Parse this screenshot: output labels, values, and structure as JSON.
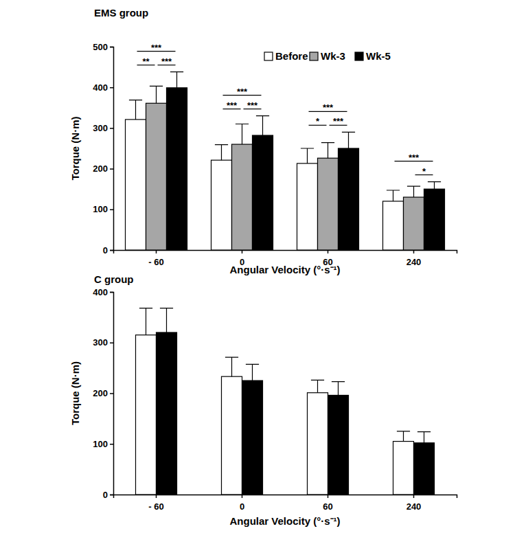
{
  "chart_data": [
    {
      "type": "bar",
      "title": "EMS group",
      "x_label": "Angular Velocity (°·s⁻¹)",
      "y_label": "Torque (N·m)",
      "categories": [
        "- 60",
        "0",
        "60",
        "240"
      ],
      "series": [
        {
          "name": "Before",
          "color": "#ffffff",
          "values": [
            321,
            221,
            213,
            120
          ],
          "errors": [
            48,
            38,
            37,
            27
          ]
        },
        {
          "name": "Wk-3",
          "color": "#a6a6a6",
          "values": [
            361,
            260,
            226,
            130
          ],
          "errors": [
            42,
            50,
            38,
            27
          ]
        },
        {
          "name": "Wk-5",
          "color": "#000000",
          "values": [
            399,
            282,
            250,
            150
          ],
          "errors": [
            39,
            48,
            40,
            18
          ]
        }
      ],
      "ylim": [
        0,
        500
      ],
      "yticks": [
        0,
        100,
        200,
        300,
        400,
        500
      ],
      "legend": "top-right",
      "annotations": [
        {
          "category": "- 60",
          "from": "Before",
          "to": "Wk-3",
          "label": "**"
        },
        {
          "category": "- 60",
          "from": "Wk-3",
          "to": "Wk-5",
          "label": "***"
        },
        {
          "category": "- 60",
          "from": "Before",
          "to": "Wk-5",
          "label": "***"
        },
        {
          "category": "0",
          "from": "Before",
          "to": "Wk-3",
          "label": "***"
        },
        {
          "category": "0",
          "from": "Wk-3",
          "to": "Wk-5",
          "label": "***"
        },
        {
          "category": "0",
          "from": "Before",
          "to": "Wk-5",
          "label": "***"
        },
        {
          "category": "60",
          "from": "Before",
          "to": "Wk-3",
          "label": "*"
        },
        {
          "category": "60",
          "from": "Wk-3",
          "to": "Wk-5",
          "label": "***"
        },
        {
          "category": "60",
          "from": "Before",
          "to": "Wk-5",
          "label": "***"
        },
        {
          "category": "240",
          "from": "Wk-3",
          "to": "Wk-5",
          "label": "*"
        },
        {
          "category": "240",
          "from": "Before",
          "to": "Wk-5",
          "label": "***"
        }
      ]
    },
    {
      "type": "bar",
      "title": "C group",
      "x_label": "Angular Velocity (°·s⁻¹)",
      "y_label": "Torque (N·m)",
      "categories": [
        "- 60",
        "0",
        "60",
        "240"
      ],
      "series": [
        {
          "color": "#ffffff",
          "values": [
            315,
            233,
            201,
            105
          ],
          "errors": [
            53,
            38,
            25,
            20
          ]
        },
        {
          "color": "#000000",
          "values": [
            320,
            225,
            196,
            102
          ],
          "errors": [
            48,
            32,
            27,
            22
          ]
        }
      ],
      "ylim": [
        0,
        400
      ],
      "yticks": [
        0,
        100,
        200,
        300,
        400
      ]
    }
  ]
}
